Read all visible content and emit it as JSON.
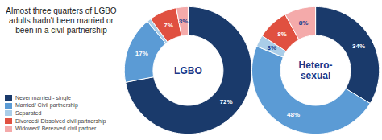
{
  "chart_data": {
    "type": "pie",
    "title": "Almost three quarters of LGBO adults hadn't been married or been in a civil partnership",
    "categories": [
      "Never married - single",
      "Married/ Civil partnership",
      "Separated",
      "Divorced/ Dissolved civil partnership",
      "Widowed/ Bereaved civil partner"
    ],
    "colors": [
      "#1a3a6b",
      "#5b9bd5",
      "#aacde8",
      "#e05040",
      "#f4aaaa"
    ],
    "series": [
      {
        "name": "LGBO",
        "values": [
          72,
          17,
          1,
          7,
          3
        ],
        "value_labels": [
          "72%",
          "17%",
          null,
          "7%",
          "3%"
        ]
      },
      {
        "name": "Hetero-\nsexual",
        "values": [
          34,
          48,
          3,
          8,
          8
        ],
        "value_labels": [
          "34%",
          "48%",
          "3%",
          "8%",
          "8%"
        ]
      }
    ],
    "data_labels": true,
    "legend": "left",
    "tick_labels": false
  }
}
